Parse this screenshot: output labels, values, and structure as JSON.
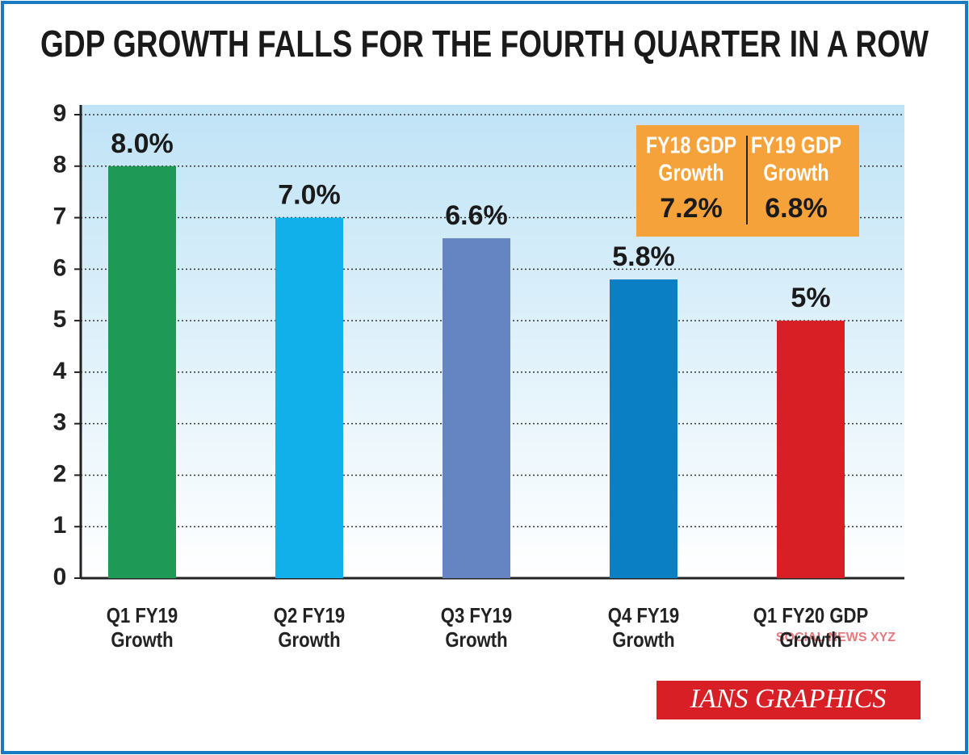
{
  "chart_data": {
    "type": "bar",
    "title": "GDP GROWTH FALLS FOR THE FOURTH QUARTER IN A ROW",
    "categories": [
      "Q1 FY19 Growth",
      "Q2 FY19 Growth",
      "Q3 FY19 Growth",
      "Q4 FY19 Growth",
      "Q1 FY20 GDP Growth"
    ],
    "values": [
      8.0,
      7.0,
      6.6,
      5.8,
      5
    ],
    "value_labels": [
      "8.0%",
      "7.0%",
      "6.6%",
      "5.8%",
      "5%"
    ],
    "colors": [
      "#1e9a56",
      "#12b0ea",
      "#6585c2",
      "#0a7fc4",
      "#d81f26"
    ],
    "ylim": [
      0,
      9
    ],
    "yticks": [
      0,
      1,
      2,
      3,
      4,
      5,
      6,
      7,
      8,
      9
    ],
    "grid": true,
    "annotations": [
      {
        "label": [
          "FY18 GDP",
          "Growth"
        ],
        "value": "7.2%"
      },
      {
        "label": [
          "FY19 GDP",
          "Growth"
        ],
        "value": "6.8%"
      }
    ],
    "source": "IANS GRAPHICS",
    "watermark": "SOCIAL NEWS XYZ"
  }
}
